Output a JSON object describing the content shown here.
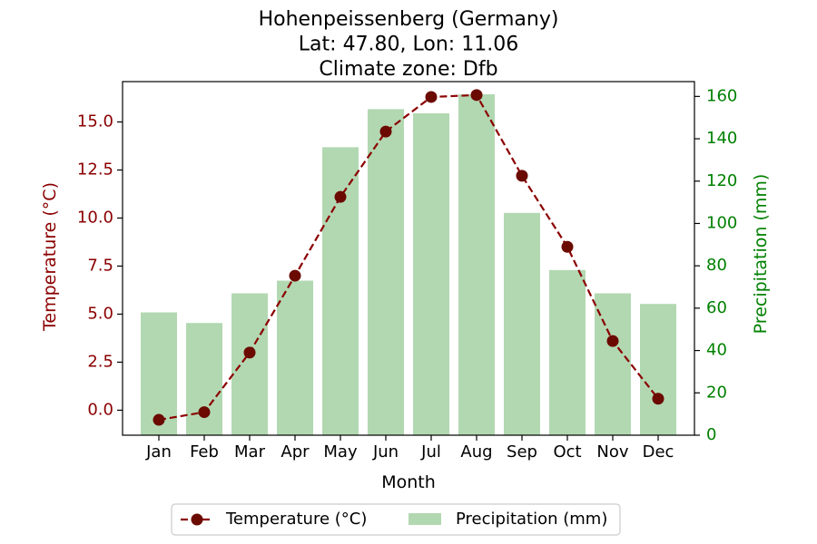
{
  "chart_data": {
    "type": "bar+line",
    "title_lines": [
      "Hohenpeissenberg (Germany)",
      "Lat: 47.80, Lon: 11.06",
      "Climate zone: Dfb"
    ],
    "xlabel": "Month",
    "categories": [
      "Jan",
      "Feb",
      "Mar",
      "Apr",
      "May",
      "Jun",
      "Jul",
      "Aug",
      "Sep",
      "Oct",
      "Nov",
      "Dec"
    ],
    "y_left": {
      "label": "Temperature (°C)",
      "range": [
        -1.3,
        17.1
      ],
      "ticks": [
        0.0,
        2.5,
        5.0,
        7.5,
        10.0,
        12.5,
        15.0
      ],
      "tick_labels": [
        "0.0",
        "2.5",
        "5.0",
        "7.5",
        "10.0",
        "12.5",
        "15.0"
      ],
      "color": "#8b0000"
    },
    "y_right": {
      "label": "Precipitation (mm)",
      "range": [
        0,
        167
      ],
      "ticks": [
        0,
        20,
        40,
        60,
        80,
        100,
        120,
        140,
        160
      ],
      "tick_labels": [
        "0",
        "20",
        "40",
        "60",
        "80",
        "100",
        "120",
        "140",
        "160"
      ],
      "color": "#008000"
    },
    "series": [
      {
        "name": "Temperature (°C)",
        "kind": "line",
        "axis": "left",
        "style": "dashed with circle markers",
        "color": "#8b0000",
        "marker_color": "#6b0a00",
        "values": [
          -0.5,
          -0.1,
          3.0,
          7.0,
          11.1,
          14.5,
          16.3,
          16.4,
          12.2,
          8.5,
          3.6,
          0.6
        ]
      },
      {
        "name": "Precipitation (mm)",
        "kind": "bar",
        "axis": "right",
        "color": "#b2d8b2",
        "values": [
          58,
          53,
          67,
          73,
          136,
          154,
          152,
          161,
          105,
          78,
          67,
          62
        ]
      }
    ],
    "legend": {
      "placement": "bottom-center",
      "columns": 2
    }
  }
}
